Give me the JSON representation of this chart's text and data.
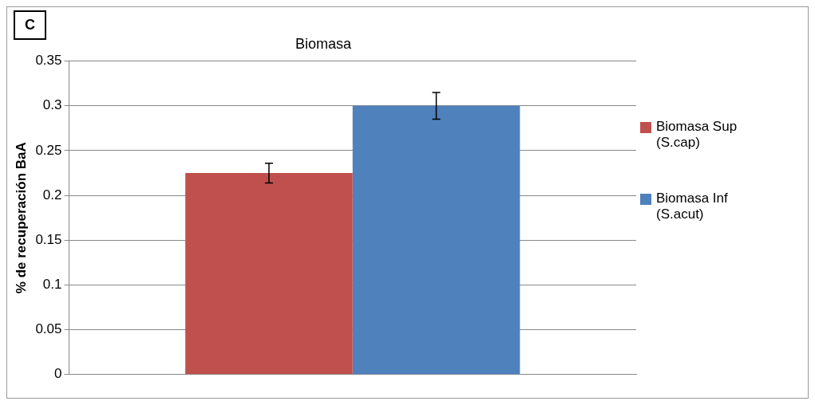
{
  "chart_data": {
    "type": "bar",
    "title": "Biomasa",
    "ylabel": "% de recuperación BaA",
    "annotations": [
      "C"
    ],
    "categories": [
      null
    ],
    "series": [
      {
        "name": "Biomasa Sup (S.cap)",
        "color": "#c0504d",
        "values": [
          0.225
        ],
        "errors": [
          0.011
        ]
      },
      {
        "name": "Biomasa Inf (S.acut)",
        "color": "#4f81bd",
        "values": [
          0.3
        ],
        "errors": [
          0.015
        ]
      }
    ],
    "ylim": [
      0,
      0.35
    ],
    "yticks": [
      0,
      0.05,
      0.1,
      0.15,
      0.2,
      0.25,
      0.3,
      0.35
    ],
    "grid": "y",
    "legend": "right"
  }
}
